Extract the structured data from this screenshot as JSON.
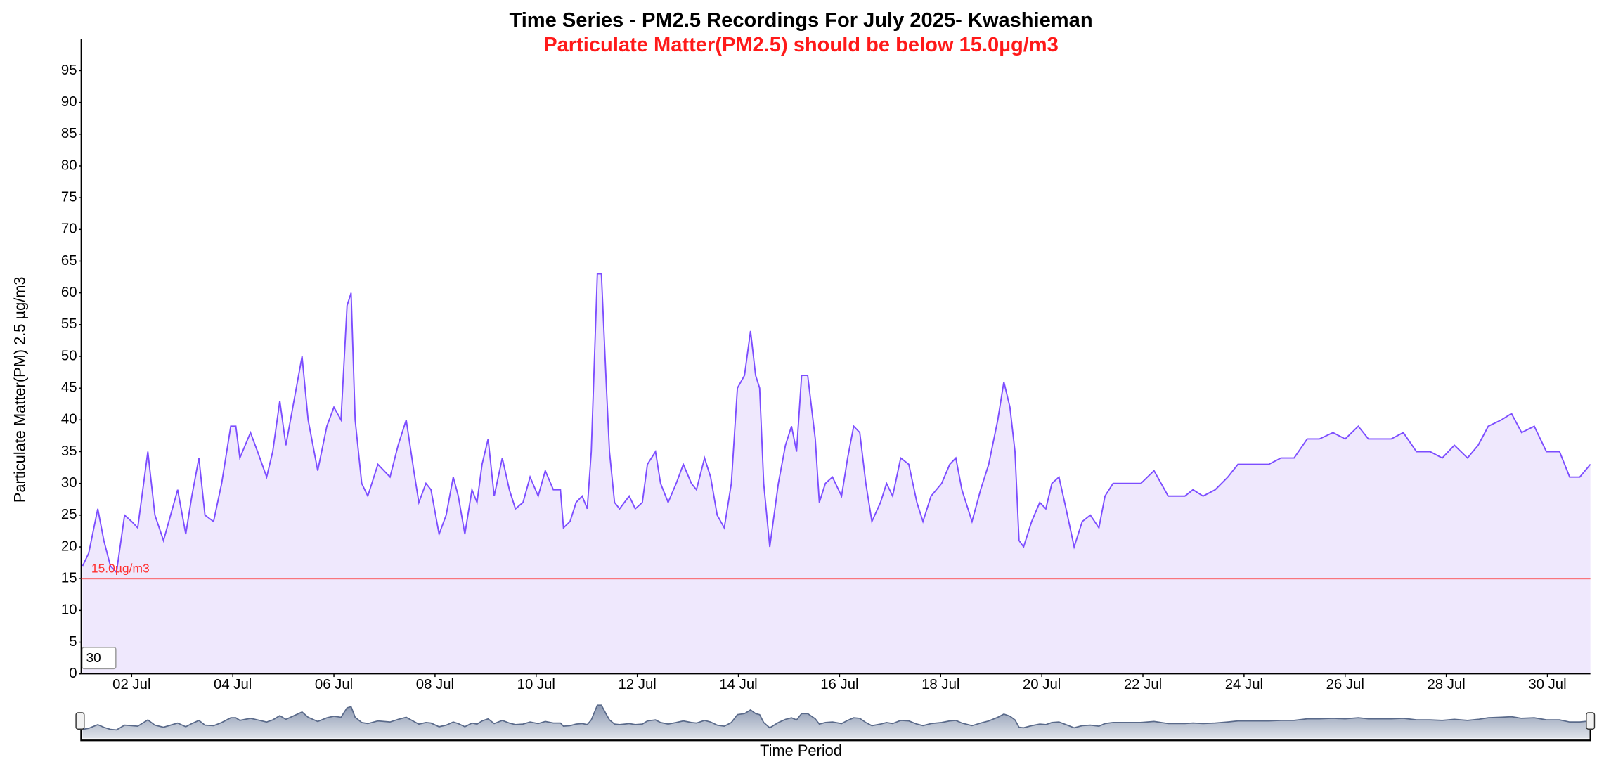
{
  "chart_data": {
    "type": "area",
    "title": "Time Series - PM2.5 Recordings For July 2025- Kwashieman",
    "subtitle": "Particulate Matter(PM2.5) should be below 15.0µg/m3",
    "y_label": "Particulate Matter(PM) 2.5 µg/m3",
    "x_label": "Time Period",
    "range_input": "30",
    "color": "#7c4dff",
    "fill_color": "#efe8fd",
    "threshold": {
      "value": 15,
      "label": "15.0µg/m3",
      "color": "#ff3030"
    },
    "xlim": [
      1.0,
      30.85
    ],
    "ylim": [
      0,
      100
    ],
    "xticks": [
      {
        "value": 2,
        "label": "02 Jul"
      },
      {
        "value": 4,
        "label": "04 Jul"
      },
      {
        "value": 6,
        "label": "06 Jul"
      },
      {
        "value": 8,
        "label": "08 Jul"
      },
      {
        "value": 10,
        "label": "10 Jul"
      },
      {
        "value": 12,
        "label": "12 Jul"
      },
      {
        "value": 14,
        "label": "14 Jul"
      },
      {
        "value": 16,
        "label": "16 Jul"
      },
      {
        "value": 18,
        "label": "18 Jul"
      },
      {
        "value": 20,
        "label": "20 Jul"
      },
      {
        "value": 22,
        "label": "22 Jul"
      },
      {
        "value": 24,
        "label": "24 Jul"
      },
      {
        "value": 26,
        "label": "26 Jul"
      },
      {
        "value": 28,
        "label": "28 Jul"
      },
      {
        "value": 30,
        "label": "30 Jul"
      }
    ],
    "yticks": [
      0,
      5,
      10,
      15,
      20,
      25,
      30,
      35,
      40,
      45,
      50,
      55,
      60,
      65,
      70,
      75,
      80,
      85,
      90,
      95
    ],
    "x": [
      1.03,
      1.15,
      1.33,
      1.45,
      1.58,
      1.7,
      1.86,
      2.0,
      2.12,
      2.32,
      2.46,
      2.63,
      2.77,
      2.91,
      3.07,
      3.19,
      3.33,
      3.45,
      3.62,
      3.78,
      3.96,
      4.06,
      4.14,
      4.35,
      4.49,
      4.67,
      4.79,
      4.93,
      5.05,
      5.21,
      5.37,
      5.49,
      5.68,
      5.86,
      6.0,
      6.14,
      6.26,
      6.34,
      6.42,
      6.55,
      6.67,
      6.87,
      7.11,
      7.27,
      7.43,
      7.58,
      7.68,
      7.82,
      7.92,
      8.08,
      8.22,
      8.36,
      8.46,
      8.59,
      8.73,
      8.83,
      8.93,
      9.05,
      9.17,
      9.33,
      9.47,
      9.59,
      9.74,
      9.88,
      10.04,
      10.18,
      10.34,
      10.48,
      10.54,
      10.67,
      10.79,
      10.91,
      11.01,
      11.09,
      11.21,
      11.29,
      11.39,
      11.45,
      11.55,
      11.65,
      11.84,
      11.96,
      12.1,
      12.2,
      12.36,
      12.46,
      12.61,
      12.77,
      12.91,
      13.07,
      13.17,
      13.33,
      13.45,
      13.58,
      13.72,
      13.86,
      13.98,
      14.12,
      14.24,
      14.34,
      14.42,
      14.5,
      14.62,
      14.79,
      14.93,
      15.05,
      15.15,
      15.25,
      15.37,
      15.52,
      15.6,
      15.72,
      15.86,
      16.04,
      16.16,
      16.28,
      16.4,
      16.52,
      16.64,
      16.81,
      16.93,
      17.05,
      17.21,
      17.37,
      17.53,
      17.65,
      17.81,
      18.02,
      18.18,
      18.3,
      18.42,
      18.62,
      18.79,
      18.95,
      19.13,
      19.25,
      19.37,
      19.47,
      19.55,
      19.64,
      19.8,
      19.96,
      20.08,
      20.2,
      20.34,
      20.48,
      20.64,
      20.8,
      20.96,
      21.13,
      21.25,
      21.41,
      21.65,
      21.96,
      22.22,
      22.5,
      22.83,
      22.99,
      23.19,
      23.43,
      23.68,
      23.88,
      24.18,
      24.49,
      24.73,
      24.99,
      25.25,
      25.49,
      25.76,
      26.0,
      26.26,
      26.46,
      26.71,
      26.91,
      27.15,
      27.41,
      27.68,
      27.92,
      28.16,
      28.42,
      28.63,
      28.83,
      29.09,
      29.29,
      29.49,
      29.74,
      29.98,
      30.24,
      30.44,
      30.64,
      30.85
    ],
    "values": [
      17,
      19,
      26,
      21,
      17,
      16,
      25,
      24,
      23,
      35,
      25,
      21,
      25,
      29,
      22,
      28,
      34,
      25,
      24,
      30,
      39,
      39,
      34,
      38,
      35,
      31,
      35,
      43,
      36,
      43,
      50,
      40,
      32,
      39,
      42,
      40,
      58,
      60,
      40,
      30,
      28,
      33,
      31,
      36,
      40,
      32,
      27,
      30,
      29,
      22,
      25,
      31,
      28,
      22,
      29,
      27,
      33,
      37,
      28,
      34,
      29,
      26,
      27,
      31,
      28,
      32,
      29,
      29,
      23,
      24,
      27,
      28,
      26,
      35,
      63,
      63,
      45,
      35,
      27,
      26,
      28,
      26,
      27,
      33,
      35,
      30,
      27,
      30,
      33,
      30,
      29,
      34,
      31,
      25,
      23,
      30,
      45,
      47,
      54,
      47,
      45,
      30,
      20,
      30,
      36,
      39,
      35,
      47,
      47,
      37,
      27,
      30,
      31,
      28,
      34,
      39,
      38,
      30,
      24,
      27,
      30,
      28,
      34,
      33,
      27,
      24,
      28,
      30,
      33,
      34,
      29,
      24,
      29,
      33,
      40,
      46,
      42,
      35,
      21,
      20,
      24,
      27,
      26,
      30,
      31,
      26,
      20,
      24,
      25,
      23,
      28,
      30,
      30,
      30,
      32,
      28,
      28,
      29,
      28,
      29,
      31,
      33,
      33,
      33,
      34,
      34,
      37,
      37,
      38,
      37,
      39,
      37,
      37,
      37,
      38,
      35,
      35,
      34,
      36,
      34,
      36,
      39,
      40,
      41,
      38,
      39,
      35,
      35,
      31,
      31,
      33
    ]
  }
}
